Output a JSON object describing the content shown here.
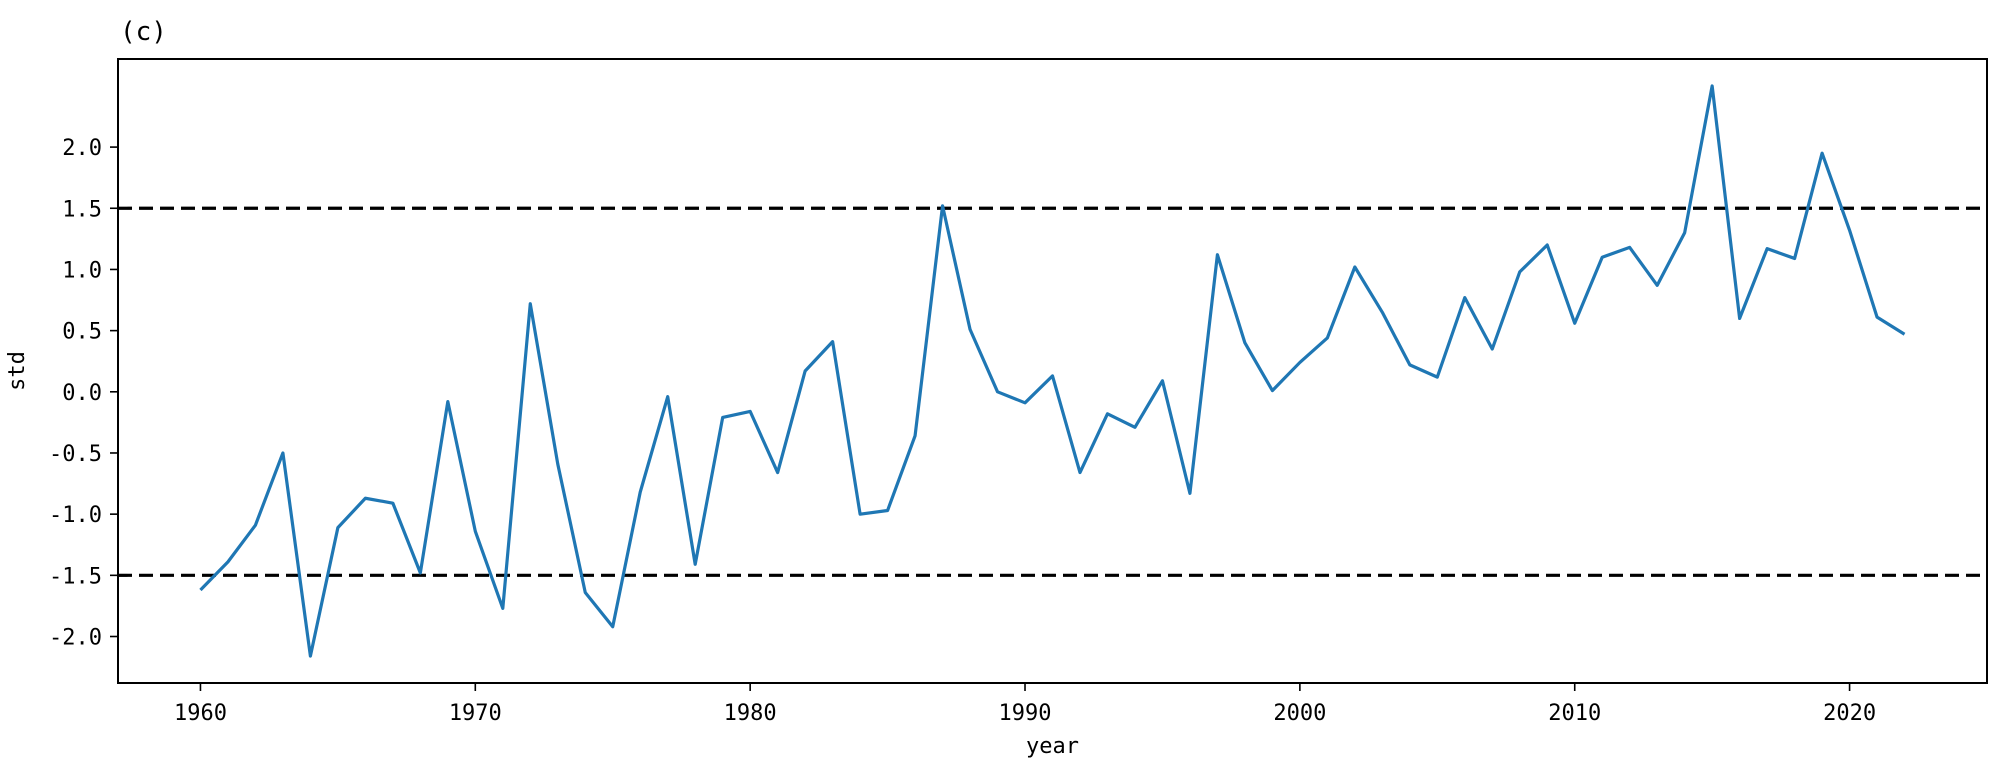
{
  "panel_label": "(c)",
  "chart_data": {
    "type": "line",
    "xlabel": "year",
    "ylabel": "std",
    "xlim": [
      1957,
      2025
    ],
    "ylim": [
      -2.38,
      2.72
    ],
    "x_ticks": [
      1960,
      1970,
      1980,
      1990,
      2000,
      2010,
      2020
    ],
    "y_ticks": [
      -2.0,
      -1.5,
      -1.0,
      -0.5,
      0.0,
      0.5,
      1.0,
      1.5,
      2.0
    ],
    "y_tick_labels": [
      "-2.0",
      "-1.5",
      "-1.0",
      "-0.5",
      "0.0",
      "0.5",
      "1.0",
      "1.5",
      "2.0"
    ],
    "threshold_lines": [
      1.5,
      -1.5
    ],
    "line_color": "#1f77b4",
    "threshold_color": "#000000",
    "grid": false,
    "series": [
      {
        "x": [
          1960,
          1961,
          1962,
          1963,
          1964,
          1965,
          1966,
          1967,
          1968,
          1969,
          1970,
          1971,
          1972,
          1973,
          1974,
          1975,
          1976,
          1977,
          1978,
          1979,
          1980,
          1981,
          1982,
          1983,
          1984,
          1985,
          1986,
          1987,
          1988,
          1989,
          1990,
          1991,
          1992,
          1993,
          1994,
          1995,
          1996,
          1997,
          1998,
          1999,
          2000,
          2001,
          2002,
          2003,
          2004,
          2005,
          2006,
          2007,
          2008,
          2009,
          2010,
          2011,
          2012,
          2013,
          2014,
          2015,
          2016,
          2017,
          2018,
          2019,
          2020,
          2021,
          2022
        ],
        "values": [
          -1.62,
          -1.39,
          -1.09,
          -0.5,
          -2.16,
          -1.11,
          -0.87,
          -0.91,
          -1.48,
          -0.08,
          -1.14,
          -1.77,
          0.72,
          -0.59,
          -1.64,
          -1.92,
          -0.82,
          -0.04,
          -1.41,
          -0.21,
          -0.16,
          -0.66,
          0.17,
          0.41,
          -1.0,
          -0.97,
          -0.36,
          1.52,
          0.51,
          0.0,
          -0.09,
          0.13,
          -0.66,
          -0.18,
          -0.29,
          0.09,
          -0.83,
          1.12,
          0.4,
          0.01,
          0.24,
          0.44,
          1.02,
          0.65,
          0.22,
          0.12,
          0.77,
          0.35,
          0.98,
          1.2,
          0.56,
          1.1,
          1.18,
          0.87,
          1.3,
          2.5,
          0.6,
          1.17,
          1.09,
          1.95,
          1.32,
          0.61,
          0.47
        ]
      }
    ]
  }
}
